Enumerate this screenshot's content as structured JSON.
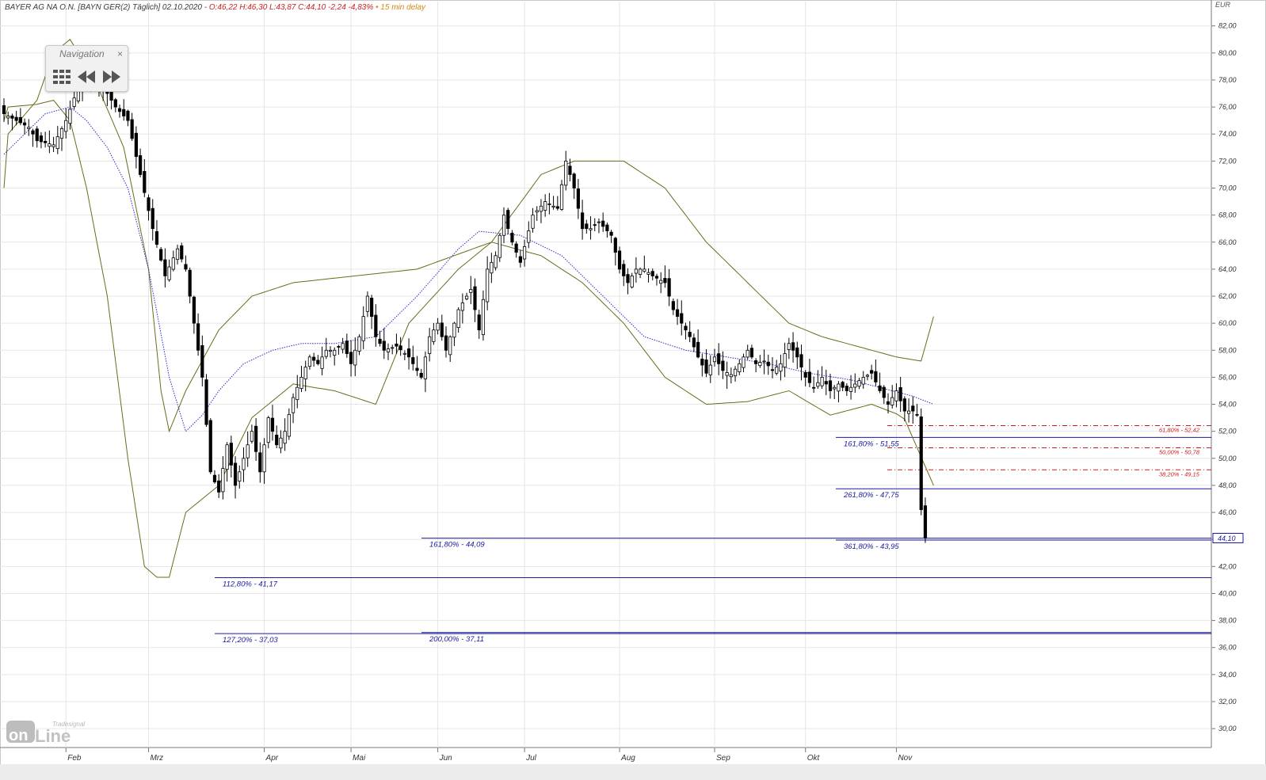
{
  "header": {
    "base": "BAYER AG NA O.N. [BAYN GER(2) Täglich] 02.10.2020 -",
    "quote": "O:46,22 H:46,30 L:43,87 C:44,10 -2,24 -4,83%",
    "delay": "• 15 min delay"
  },
  "navigation": {
    "title": "Navigation",
    "close": "×"
  },
  "logo": {
    "brand": "Tradesignal",
    "word": "online"
  },
  "colors": {
    "up": "#ffffff",
    "down": "#000000",
    "band": "#6b6b1a",
    "ma": "#2b2bcc",
    "fib_blue": "#1a1aa0",
    "fib_red": "#cc2020",
    "grid": "#e6e6e6",
    "price_tag": "#1a1aa0"
  },
  "chart_data": {
    "type": "candlestick",
    "y_unit": "EUR",
    "ylim": [
      28.6,
      83.8
    ],
    "y_ticks": [
      "30,00",
      "32,00",
      "34,00",
      "36,00",
      "38,00",
      "40,00",
      "42,00",
      "44,00",
      "46,00",
      "48,00",
      "50,00",
      "52,00",
      "54,00",
      "56,00",
      "58,00",
      "60,00",
      "62,00",
      "64,00",
      "66,00",
      "68,00",
      "70,00",
      "72,00",
      "74,00",
      "76,00",
      "78,00",
      "80,00",
      "82,00"
    ],
    "x_months": [
      "Feb",
      "Mrz",
      "Apr",
      "Mai",
      "Jun",
      "Jul",
      "Aug",
      "Sep",
      "Okt",
      "Nov"
    ],
    "last_price": "44,10",
    "series": {
      "upper_band_anchors": [
        [
          0,
          70
        ],
        [
          1,
          74
        ],
        [
          8,
          76.5
        ],
        [
          12,
          80
        ],
        [
          16,
          81
        ],
        [
          22,
          78
        ],
        [
          29,
          73
        ],
        [
          35,
          64
        ],
        [
          38,
          55
        ],
        [
          40,
          52
        ],
        [
          44,
          55
        ],
        [
          52,
          59.5
        ],
        [
          60,
          62
        ],
        [
          70,
          63
        ],
        [
          85,
          63.5
        ],
        [
          100,
          64
        ],
        [
          118,
          66
        ],
        [
          130,
          71
        ],
        [
          138,
          72
        ],
        [
          150,
          72
        ],
        [
          160,
          70
        ],
        [
          170,
          66
        ],
        [
          180,
          63
        ],
        [
          190,
          60
        ],
        [
          198,
          59
        ],
        [
          210,
          58
        ],
        [
          216,
          57.5
        ],
        [
          222,
          57.2
        ],
        [
          225,
          60.5
        ]
      ],
      "lower_band_anchors": [
        [
          0,
          75
        ],
        [
          1,
          76
        ],
        [
          8,
          76.2
        ],
        [
          12,
          76.5
        ],
        [
          16,
          75
        ],
        [
          20,
          70
        ],
        [
          25,
          62
        ],
        [
          30,
          50
        ],
        [
          34,
          42
        ],
        [
          37,
          41.2
        ],
        [
          40,
          41.2
        ],
        [
          44,
          46
        ],
        [
          52,
          48
        ],
        [
          60,
          53
        ],
        [
          70,
          55.5
        ],
        [
          80,
          55
        ],
        [
          90,
          54
        ],
        [
          98,
          60
        ],
        [
          110,
          64
        ],
        [
          118,
          66
        ],
        [
          130,
          65
        ],
        [
          140,
          63
        ],
        [
          150,
          60
        ],
        [
          160,
          56
        ],
        [
          170,
          54
        ],
        [
          180,
          54.2
        ],
        [
          190,
          55
        ],
        [
          200,
          53.2
        ],
        [
          210,
          54
        ],
        [
          216,
          53.3
        ],
        [
          218,
          52.9
        ],
        [
          225,
          48
        ]
      ],
      "ma_anchors": [
        [
          0,
          72.5
        ],
        [
          5,
          74
        ],
        [
          10,
          75.5
        ],
        [
          16,
          76
        ],
        [
          20,
          75
        ],
        [
          25,
          73
        ],
        [
          30,
          70
        ],
        [
          35,
          64
        ],
        [
          40,
          56
        ],
        [
          44,
          52
        ],
        [
          48,
          53.2
        ],
        [
          52,
          55
        ],
        [
          58,
          57
        ],
        [
          65,
          58
        ],
        [
          72,
          58.5
        ],
        [
          80,
          58.5
        ],
        [
          90,
          59
        ],
        [
          100,
          62
        ],
        [
          110,
          65.5
        ],
        [
          115,
          66.8
        ],
        [
          125,
          66.5
        ],
        [
          135,
          65
        ],
        [
          145,
          62
        ],
        [
          155,
          59
        ],
        [
          165,
          58
        ],
        [
          175,
          57.5
        ],
        [
          185,
          57
        ],
        [
          195,
          56.3
        ],
        [
          205,
          55.8
        ],
        [
          215,
          55
        ],
        [
          220,
          54.6
        ],
        [
          225,
          54
        ]
      ]
    },
    "candles_description": "Daily OHLC of Bayer AG, Feb–Oct 2020",
    "fib_levels_blue": [
      {
        "label": "112,80% - 41,17",
        "value": 41.17,
        "from": "Mrz",
        "extends": "right"
      },
      {
        "label": "127,20% - 37,03",
        "value": 37.03,
        "from": "Mrz",
        "extends": "right"
      },
      {
        "label": "161,80% - 44,09",
        "value": 44.09,
        "from": "Mai",
        "extends": "right"
      },
      {
        "label": "200,00% - 37,11",
        "value": 37.11,
        "from": "Mai",
        "extends": "right"
      },
      {
        "label": "161,80% - 51,55",
        "value": 51.55,
        "from": "Sep",
        "extends": "right"
      },
      {
        "label": "261,80% - 47,75",
        "value": 47.75,
        "from": "Sep",
        "extends": "right"
      },
      {
        "label": "361,80% - 43,95",
        "value": 43.95,
        "from": "Sep",
        "extends": "right"
      }
    ],
    "fib_levels_red": [
      {
        "label": "61,80% - 52,42",
        "value": 52.42
      },
      {
        "label": "50,00% - 50,78",
        "value": 50.78
      },
      {
        "label": "38,20% - 49,15",
        "value": 49.15
      }
    ]
  }
}
